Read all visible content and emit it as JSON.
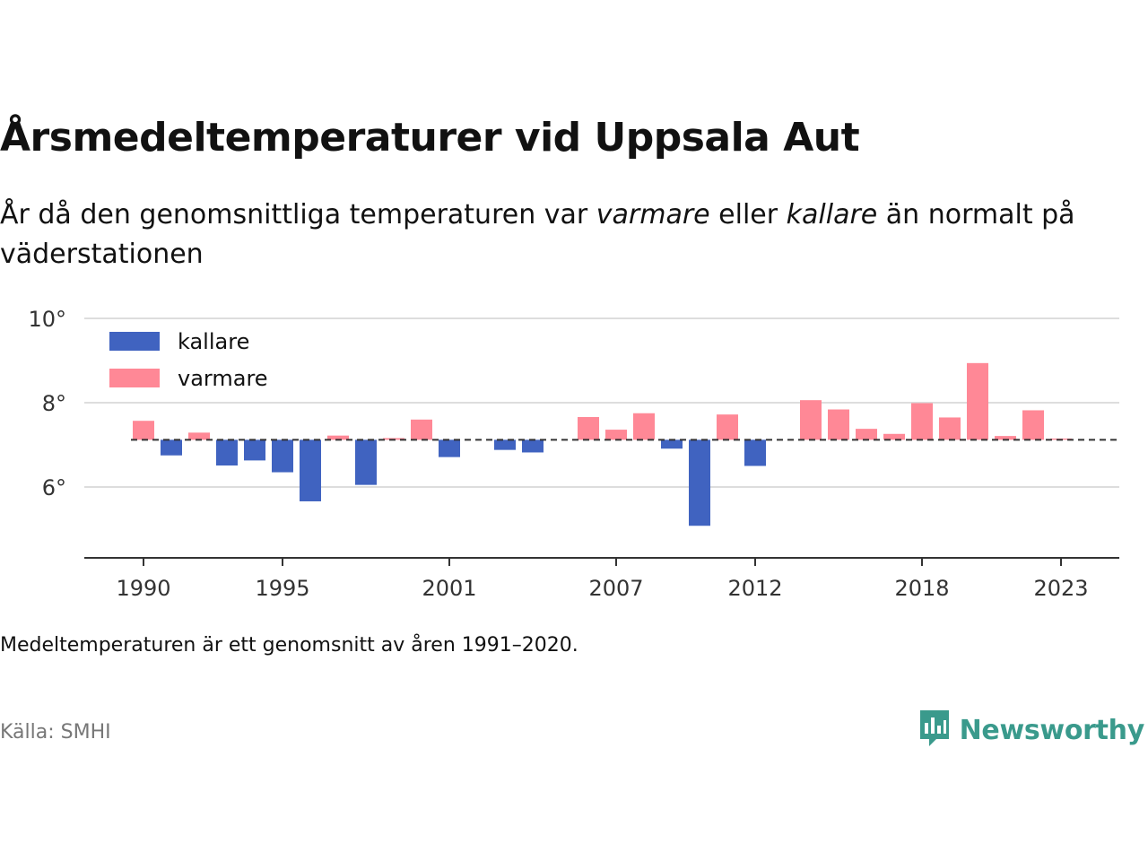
{
  "header": {
    "title": "Årsmedeltemperaturer vid Uppsala Aut",
    "subtitle_part1": "År då den genomsnittliga temperaturen var ",
    "subtitle_warmer": "varmare",
    "subtitle_part2": " eller ",
    "subtitle_colder": "kallare",
    "subtitle_part3": " än normalt på väderstationen"
  },
  "footer": {
    "note": "Medeltemperaturen är ett genomsnitt av åren 1991–2020.",
    "source": "Källa: SMHI",
    "brand": "Newsworthy",
    "brand_icon": "newsworthy-logo-icon"
  },
  "colors": {
    "kallare": "#4063c0",
    "varmare": "#ff8896",
    "grid": "#dddddd",
    "axis": "#333333",
    "brand": "#3a9a8c"
  },
  "chart_data": {
    "type": "bar",
    "baseline": 7.12,
    "baseline_style": "dashed",
    "ylim": [
      4.3,
      10
    ],
    "yticks": [
      6,
      8,
      10
    ],
    "ytick_labels": [
      "6°",
      "8°",
      "10°"
    ],
    "xticks": [
      1990,
      1995,
      2001,
      2007,
      2012,
      2018,
      2023
    ],
    "xtick_labels": [
      "1990",
      "1995",
      "2001",
      "2007",
      "2012",
      "2018",
      "2023"
    ],
    "grid": true,
    "legend": {
      "placement": "top-left",
      "items": [
        {
          "key": "kallare",
          "label": "kallare"
        },
        {
          "key": "varmare",
          "label": "varmare"
        }
      ]
    },
    "x": [
      1990,
      1991,
      1992,
      1993,
      1994,
      1995,
      1996,
      1997,
      1998,
      1999,
      2000,
      2001,
      2002,
      2003,
      2004,
      2005,
      2006,
      2007,
      2008,
      2009,
      2010,
      2011,
      2012,
      2013,
      2014,
      2015,
      2016,
      2017,
      2018,
      2019,
      2020,
      2021,
      2022,
      2023
    ],
    "values": [
      7.57,
      6.75,
      7.29,
      6.51,
      6.63,
      6.35,
      5.66,
      7.22,
      6.05,
      7.16,
      7.6,
      6.71,
      7.12,
      6.88,
      6.82,
      7.12,
      7.66,
      7.36,
      7.75,
      6.91,
      5.08,
      7.72,
      6.5,
      7.12,
      8.06,
      7.84,
      7.38,
      7.26,
      7.99,
      7.65,
      8.94,
      7.21,
      7.82,
      7.15
    ]
  }
}
